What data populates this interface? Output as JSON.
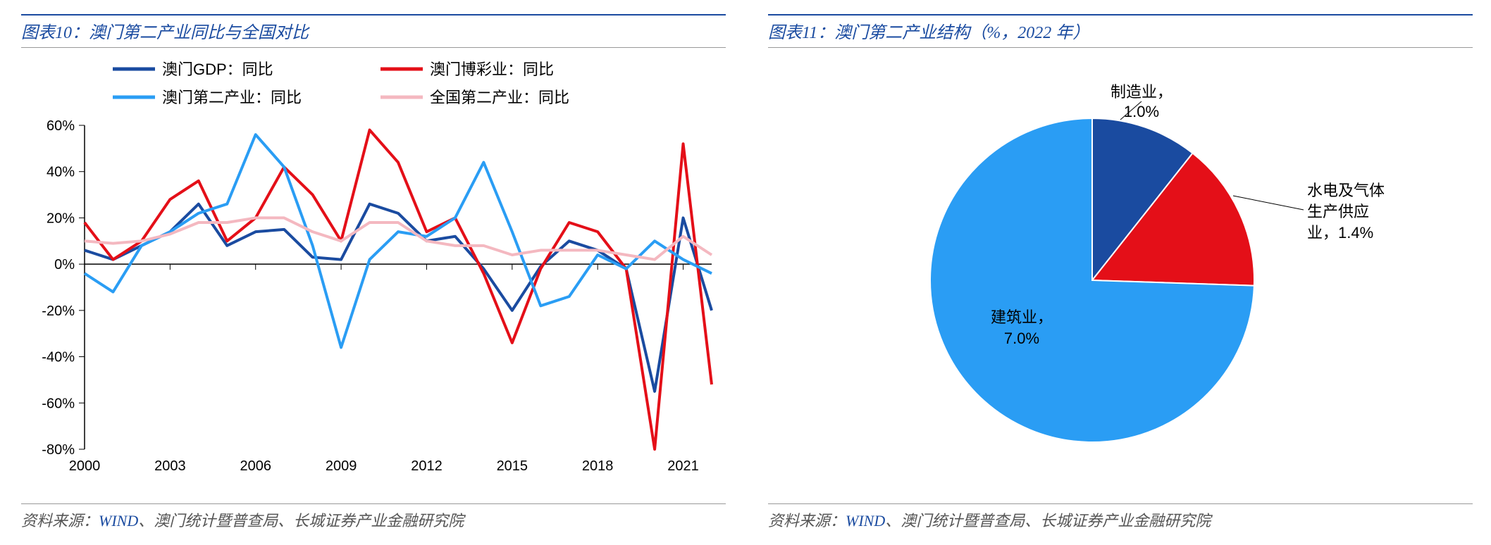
{
  "left": {
    "title": "图表10：澳门第二产业同比与全国对比",
    "footer_prefix": "资料来源：",
    "footer_wind": "WIND",
    "footer_rest": "、澳门统计暨普查局、长城证券产业金融研究院",
    "chart": {
      "type": "line",
      "ylim": [
        -80,
        60
      ],
      "ytick_step": 20,
      "yticks": [
        -80,
        -60,
        -40,
        -20,
        0,
        20,
        40,
        60
      ],
      "y_suffix": "%",
      "xrange": [
        2000,
        2022
      ],
      "xticks": [
        2000,
        2003,
        2006,
        2009,
        2012,
        2015,
        2018,
        2021
      ],
      "axis_color": "#000000",
      "tick_fontsize": 20,
      "legend_fontsize": 22,
      "line_width": 4,
      "legend": [
        {
          "label": "澳门GDP：同比",
          "color": "#1a4ba0"
        },
        {
          "label": "澳门博彩业：同比",
          "color": "#e40f18"
        },
        {
          "label": "澳门第二产业：同比",
          "color": "#2a9df4"
        },
        {
          "label": "全国第二产业：同比",
          "color": "#f4b8c0"
        }
      ],
      "series": {
        "gdp": {
          "color": "#1a4ba0",
          "width": 4,
          "values": [
            6,
            2,
            8,
            14,
            26,
            8,
            14,
            15,
            3,
            2,
            26,
            22,
            10,
            12,
            -2,
            -20,
            -1,
            10,
            6,
            -2,
            -55,
            20,
            -20
          ]
        },
        "gaming": {
          "color": "#e40f18",
          "width": 4,
          "values": [
            18,
            2,
            10,
            28,
            36,
            10,
            20,
            42,
            30,
            10,
            58,
            44,
            14,
            20,
            -4,
            -34,
            -2,
            18,
            14,
            -2,
            -80,
            52,
            -52
          ]
        },
        "macau_sec": {
          "color": "#2a9df4",
          "width": 4,
          "values": [
            -4,
            -12,
            8,
            14,
            22,
            26,
            56,
            42,
            8,
            -36,
            2,
            14,
            12,
            20,
            44,
            14,
            -18,
            -14,
            4,
            -2,
            10,
            2,
            -4
          ]
        },
        "china_sec": {
          "color": "#f4b8c0",
          "width": 4,
          "values": [
            10,
            9,
            10,
            13,
            18,
            18,
            20,
            20,
            14,
            10,
            18,
            18,
            10,
            8,
            8,
            4,
            6,
            6,
            6,
            4,
            2,
            12,
            4
          ]
        }
      }
    }
  },
  "right": {
    "title": "图表11：澳门第二产业结构（%，2022 年）",
    "footer_prefix": "资料来源：",
    "footer_wind": "WIND",
    "footer_rest": "、澳门统计暨普查局、长城证券产业金融研究院",
    "chart": {
      "type": "pie",
      "background_color": "#ffffff",
      "label_fontsize": 22,
      "slices": [
        {
          "label_l1": "制造业，",
          "label_l2": "1.0%",
          "value": 1.0,
          "color": "#1a4ba0"
        },
        {
          "label_l1": "水电及气体",
          "label_l2": "生产供应",
          "label_l3": "业，1.4%",
          "value": 1.4,
          "color": "#e40f18"
        },
        {
          "label_l1": "建筑业，",
          "label_l2": "7.0%",
          "value": 7.0,
          "color": "#2a9df4"
        }
      ],
      "start_angle_deg": -90
    }
  }
}
